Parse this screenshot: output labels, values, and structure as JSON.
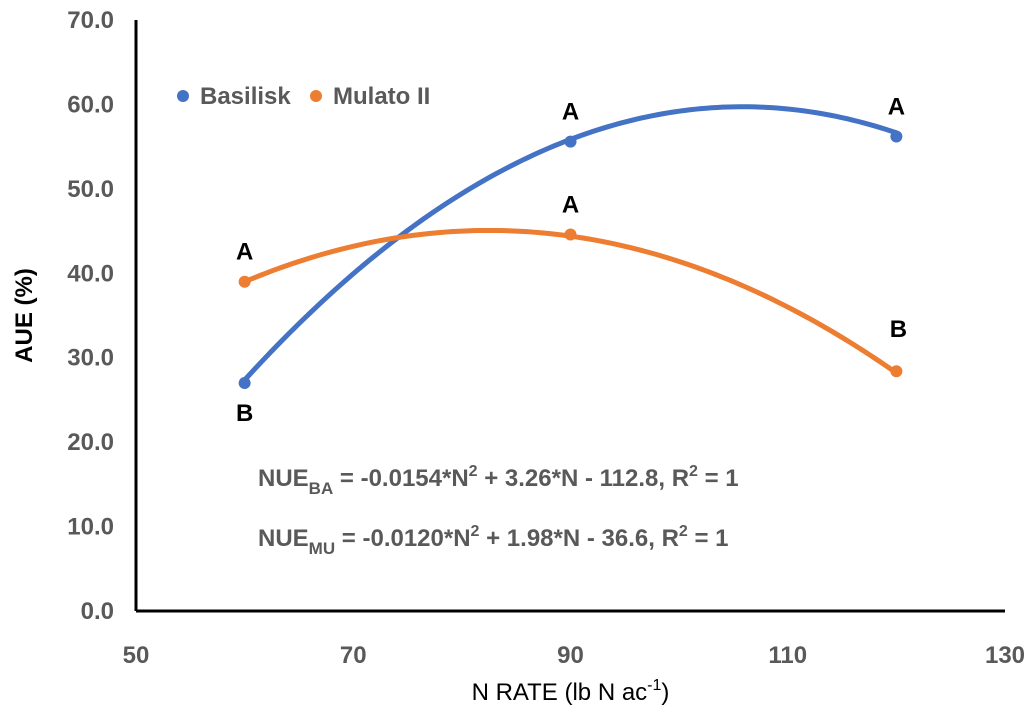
{
  "chart_data": {
    "type": "scatter",
    "xlabel": "N RATE (lb N ac⁻¹)",
    "ylabel": "AUE (%)",
    "xlim": [
      50,
      130
    ],
    "ylim": [
      0,
      70
    ],
    "xticks": [
      "50",
      "70",
      "90",
      "110",
      "130"
    ],
    "yticks": [
      "0.0",
      "10.0",
      "20.0",
      "30.0",
      "40.0",
      "50.0",
      "60.0",
      "70.0"
    ],
    "grid": false,
    "legend_position": "top-left",
    "series": [
      {
        "name": "Basilisk",
        "color": "#4472C4",
        "x": [
          60,
          90,
          120
        ],
        "y": [
          27.0,
          55.6,
          56.2
        ],
        "labels": [
          "B",
          "A",
          "A"
        ],
        "fit": {
          "a": -0.0154,
          "b": 3.26,
          "c": -112.8
        }
      },
      {
        "name": "Mulato II",
        "color": "#ED7D31",
        "x": [
          60,
          90,
          120
        ],
        "y": [
          39.0,
          44.6,
          28.4
        ],
        "labels": [
          "A",
          "A",
          "B"
        ],
        "fit": {
          "a": -0.012,
          "b": 1.98,
          "c": -36.6
        }
      }
    ],
    "equations": [
      {
        "lhs": "NUE",
        "sub": "BA",
        "rhs_a": " = -0.0154*N",
        "sup": "2",
        "rhs_b": " + 3.26*N - 112.8, R",
        "sup2": "2",
        "rhs_c": " = 1"
      },
      {
        "lhs": "NUE",
        "sub": "MU",
        "rhs_a": " = -0.0120*N",
        "sup": "2",
        "rhs_b": " + 1.98*N - 36.6, R",
        "sup2": "2",
        "rhs_c": " = 1"
      }
    ]
  }
}
